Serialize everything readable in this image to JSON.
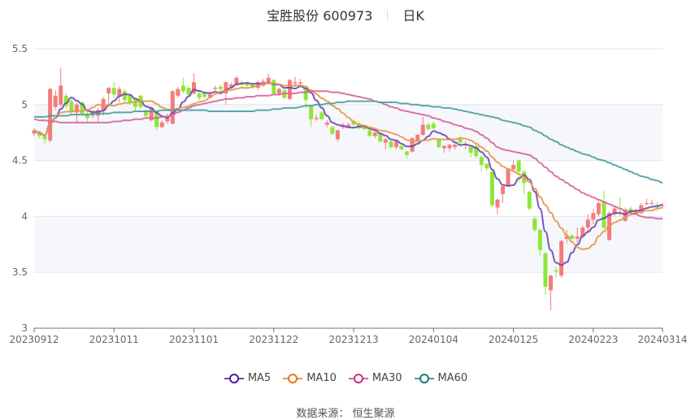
{
  "title": {
    "name": "宝胜股份 600973",
    "period": "日K"
  },
  "source": "数据来源： 恒生聚源",
  "colors": {
    "up": "#f47c7c",
    "down": "#8fe63a",
    "MA5": "#6b48b0",
    "MA10": "#e8964a",
    "MA30": "#d8609f",
    "MA60": "#4a9c9c",
    "legend_MA5": "#4a1e9e",
    "legend_MA10": "#e27820",
    "legend_MA30": "#cc2d86",
    "legend_MA60": "#137b7b"
  },
  "chart_data": {
    "type": "candlestick",
    "title": "宝胜股份 600973 日K",
    "ylim": [
      3,
      5.5
    ],
    "yticks": [
      "5.5",
      "5",
      "4.5",
      "4",
      "3.5",
      "3"
    ],
    "ytick_values": [
      5.5,
      5,
      4.5,
      4,
      3.5,
      3
    ],
    "xtick_labels": [
      "20230912",
      "20231011",
      "20231101",
      "20231122",
      "20231213",
      "20240104",
      "20240125",
      "20240223",
      "20240314"
    ],
    "xtick_indices": [
      0,
      15,
      30,
      45,
      60,
      75,
      90,
      105,
      118
    ],
    "grid": true,
    "legend": {
      "position": "bottom",
      "entries": [
        "MA5",
        "MA10",
        "MA30",
        "MA60"
      ]
    },
    "ohlc_fields": [
      "open",
      "close",
      "low",
      "high"
    ],
    "candles": [
      [
        4.74,
        4.77,
        4.72,
        4.79
      ],
      [
        4.76,
        4.72,
        4.7,
        4.77
      ],
      [
        4.72,
        4.69,
        4.65,
        4.73
      ],
      [
        4.68,
        5.14,
        4.66,
        5.15
      ],
      [
        4.98,
        5.08,
        4.95,
        5.13
      ],
      [
        5.0,
        5.17,
        4.98,
        5.33
      ],
      [
        5.08,
        4.99,
        4.97,
        5.1
      ],
      [
        5.03,
        4.94,
        4.9,
        5.05
      ],
      [
        4.93,
        5.0,
        4.84,
        5.02
      ],
      [
        5.02,
        4.92,
        4.91,
        5.03
      ],
      [
        4.92,
        4.88,
        4.85,
        4.94
      ],
      [
        4.9,
        4.93,
        4.88,
        4.95
      ],
      [
        4.9,
        4.95,
        4.85,
        4.97
      ],
      [
        4.95,
        5.05,
        4.9,
        5.07
      ],
      [
        5.1,
        5.15,
        5.0,
        5.16
      ],
      [
        5.15,
        5.09,
        5.05,
        5.2
      ],
      [
        5.08,
        5.14,
        5.02,
        5.16
      ],
      [
        5.12,
        5.04,
        5.02,
        5.14
      ],
      [
        5.08,
        5.02,
        5.0,
        5.1
      ],
      [
        5.05,
        4.98,
        4.94,
        5.06
      ],
      [
        5.08,
        4.98,
        4.96,
        5.09
      ],
      [
        4.95,
        4.9,
        4.88,
        4.96
      ],
      [
        4.86,
        4.97,
        4.85,
        4.98
      ],
      [
        4.94,
        4.8,
        4.77,
        4.95
      ],
      [
        4.8,
        4.84,
        4.79,
        4.86
      ],
      [
        4.85,
        4.9,
        4.83,
        4.92
      ],
      [
        4.83,
        5.12,
        4.82,
        5.13
      ],
      [
        5.08,
        5.14,
        5.06,
        5.16
      ],
      [
        5.17,
        5.12,
        5.1,
        5.24
      ],
      [
        5.15,
        5.09,
        5.07,
        5.16
      ],
      [
        5.1,
        5.2,
        5.09,
        5.28
      ],
      [
        5.1,
        5.06,
        5.04,
        5.12
      ],
      [
        5.1,
        5.07,
        5.05,
        5.11
      ],
      [
        5.07,
        5.09,
        5.06,
        5.12
      ],
      [
        5.14,
        5.15,
        5.12,
        5.17
      ],
      [
        5.16,
        5.14,
        5.13,
        5.18
      ],
      [
        5.1,
        5.2,
        5.0,
        5.21
      ],
      [
        5.16,
        5.18,
        5.14,
        5.2
      ],
      [
        5.18,
        5.24,
        5.17,
        5.26
      ],
      [
        5.2,
        5.18,
        5.16,
        5.22
      ],
      [
        5.19,
        5.17,
        5.15,
        5.21
      ],
      [
        5.18,
        5.16,
        5.14,
        5.2
      ],
      [
        5.15,
        5.2,
        5.13,
        5.22
      ],
      [
        5.17,
        5.21,
        5.16,
        5.23
      ],
      [
        5.2,
        5.24,
        5.18,
        5.28
      ],
      [
        5.22,
        5.1,
        5.08,
        5.23
      ],
      [
        5.1,
        5.14,
        5.08,
        5.15
      ],
      [
        5.13,
        5.06,
        5.05,
        5.14
      ],
      [
        5.05,
        5.22,
        5.04,
        5.23
      ],
      [
        5.19,
        5.2,
        5.16,
        5.25
      ],
      [
        5.19,
        5.2,
        5.17,
        5.23
      ],
      [
        5.15,
        5.04,
        4.97,
        5.16
      ],
      [
        4.99,
        4.87,
        4.8,
        5.0
      ],
      [
        4.87,
        4.88,
        4.85,
        4.91
      ],
      [
        4.93,
        4.87,
        4.86,
        4.94
      ],
      [
        4.82,
        4.84,
        4.8,
        4.86
      ],
      [
        4.8,
        4.74,
        4.73,
        4.81
      ],
      [
        4.69,
        4.77,
        4.67,
        4.78
      ],
      [
        4.8,
        4.82,
        4.78,
        4.84
      ],
      [
        4.8,
        4.82,
        4.79,
        4.84
      ],
      [
        4.85,
        4.82,
        4.81,
        4.87
      ],
      [
        4.83,
        4.79,
        4.78,
        4.85
      ],
      [
        4.8,
        4.78,
        4.77,
        4.82
      ],
      [
        4.77,
        4.72,
        4.71,
        4.78
      ],
      [
        4.72,
        4.75,
        4.7,
        4.77
      ],
      [
        4.74,
        4.67,
        4.66,
        4.75
      ],
      [
        4.66,
        4.69,
        4.6,
        4.7
      ],
      [
        4.67,
        4.62,
        4.61,
        4.68
      ],
      [
        4.62,
        4.67,
        4.6,
        4.68
      ],
      [
        4.63,
        4.6,
        4.59,
        4.64
      ],
      [
        4.58,
        4.55,
        4.52,
        4.59
      ],
      [
        4.58,
        4.7,
        4.57,
        4.71
      ],
      [
        4.68,
        4.73,
        4.67,
        4.74
      ],
      [
        4.73,
        4.82,
        4.72,
        4.89
      ],
      [
        4.82,
        4.78,
        4.77,
        4.84
      ],
      [
        4.83,
        4.79,
        4.78,
        4.85
      ],
      [
        4.69,
        4.62,
        4.61,
        4.7
      ],
      [
        4.61,
        4.63,
        4.57,
        4.64
      ],
      [
        4.61,
        4.64,
        4.58,
        4.65
      ],
      [
        4.62,
        4.64,
        4.6,
        4.66
      ],
      [
        4.7,
        4.66,
        4.64,
        4.72
      ],
      [
        4.64,
        4.65,
        4.6,
        4.67
      ],
      [
        4.62,
        4.57,
        4.53,
        4.63
      ],
      [
        4.63,
        4.54,
        4.52,
        4.65
      ],
      [
        4.53,
        4.46,
        4.4,
        4.55
      ],
      [
        4.47,
        4.43,
        4.41,
        4.48
      ],
      [
        4.4,
        4.1,
        4.08,
        4.42
      ],
      [
        4.08,
        4.15,
        4.02,
        4.16
      ],
      [
        4.2,
        4.27,
        4.12,
        4.28
      ],
      [
        4.27,
        4.42,
        4.26,
        4.43
      ],
      [
        4.42,
        4.46,
        4.4,
        4.5
      ],
      [
        4.5,
        4.4,
        4.3,
        4.51
      ],
      [
        4.4,
        4.3,
        4.2,
        4.42
      ],
      [
        4.22,
        4.07,
        4.05,
        4.23
      ],
      [
        3.98,
        3.88,
        3.86,
        4.0
      ],
      [
        3.88,
        3.7,
        3.65,
        3.89
      ],
      [
        3.67,
        3.37,
        3.3,
        3.68
      ],
      [
        3.34,
        3.47,
        3.16,
        3.48
      ],
      [
        3.52,
        3.51,
        3.45,
        3.55
      ],
      [
        3.47,
        3.78,
        3.45,
        3.79
      ],
      [
        3.8,
        3.82,
        3.76,
        3.88
      ],
      [
        3.83,
        3.8,
        3.78,
        3.84
      ],
      [
        3.8,
        3.82,
        3.76,
        3.9
      ],
      [
        3.82,
        3.9,
        3.8,
        3.92
      ],
      [
        3.9,
        3.97,
        3.85,
        4.02
      ],
      [
        3.97,
        4.03,
        3.93,
        4.07
      ],
      [
        4.02,
        4.12,
        4.0,
        4.14
      ],
      [
        4.13,
        3.9,
        3.88,
        4.23
      ],
      [
        3.79,
        4.03,
        3.78,
        4.05
      ],
      [
        4.02,
        4.07,
        4.0,
        4.09
      ],
      [
        4.04,
        4.03,
        4.0,
        4.17
      ],
      [
        3.96,
        4.06,
        3.95,
        4.08
      ],
      [
        4.07,
        4.04,
        4.02,
        4.09
      ],
      [
        4.03,
        4.05,
        4.01,
        4.07
      ],
      [
        4.03,
        4.1,
        4.02,
        4.12
      ],
      [
        4.11,
        4.12,
        4.1,
        4.16
      ],
      [
        4.12,
        4.12,
        4.1,
        4.15
      ],
      [
        4.1,
        4.08,
        4.05,
        4.13
      ],
      [
        4.1,
        4.1,
        4.07,
        4.12
      ]
    ],
    "series": [
      {
        "name": "MA5",
        "window": 5
      },
      {
        "name": "MA10",
        "window": 10
      },
      {
        "name": "MA30",
        "values": [
          4.87,
          4.86,
          4.86,
          4.85,
          4.85,
          4.84,
          4.84,
          4.84,
          4.84,
          4.84,
          4.84,
          4.84,
          4.84,
          4.84,
          4.84,
          4.85,
          4.85,
          4.86,
          4.86,
          4.87,
          4.87,
          4.88,
          4.88,
          4.88,
          4.89,
          4.89,
          4.91,
          4.93,
          4.95,
          4.97,
          4.99,
          5.0,
          5.01,
          5.02,
          5.03,
          5.04,
          5.05,
          5.05,
          5.06,
          5.06,
          5.07,
          5.07,
          5.08,
          5.08,
          5.08,
          5.09,
          5.09,
          5.1,
          5.1,
          5.1,
          5.11,
          5.11,
          5.12,
          5.12,
          5.12,
          5.12,
          5.11,
          5.11,
          5.1,
          5.09,
          5.08,
          5.07,
          5.06,
          5.05,
          5.03,
          5.02,
          5.0,
          4.98,
          4.97,
          4.95,
          4.94,
          4.93,
          4.92,
          4.91,
          4.9,
          4.88,
          4.87,
          4.85,
          4.84,
          4.82,
          4.81,
          4.79,
          4.78,
          4.76,
          4.73,
          4.7,
          4.66,
          4.62,
          4.6,
          4.59,
          4.58,
          4.57,
          4.56,
          4.55,
          4.52,
          4.48,
          4.44,
          4.4,
          4.36,
          4.33,
          4.3,
          4.27,
          4.24,
          4.21,
          4.19,
          4.17,
          4.15,
          4.13,
          4.11,
          4.09,
          4.07,
          4.05,
          4.03,
          4.02,
          4.0,
          3.99,
          3.99,
          3.98,
          3.98
        ]
      },
      {
        "name": "MA60",
        "values": [
          4.89,
          4.89,
          4.89,
          4.9,
          4.9,
          4.9,
          4.9,
          4.91,
          4.91,
          4.91,
          4.91,
          4.92,
          4.92,
          4.92,
          4.92,
          4.93,
          4.93,
          4.93,
          4.93,
          4.94,
          4.94,
          4.94,
          4.94,
          4.94,
          4.95,
          4.95,
          4.95,
          4.95,
          4.95,
          4.95,
          4.95,
          4.95,
          4.95,
          4.94,
          4.94,
          4.94,
          4.94,
          4.94,
          4.94,
          4.94,
          4.94,
          4.94,
          4.95,
          4.95,
          4.95,
          4.96,
          4.96,
          4.97,
          4.97,
          4.97,
          4.98,
          4.99,
          4.99,
          5.0,
          5.0,
          5.01,
          5.01,
          5.02,
          5.02,
          5.03,
          5.03,
          5.03,
          5.03,
          5.03,
          5.03,
          5.02,
          5.02,
          5.02,
          5.02,
          5.01,
          5.01,
          5.0,
          5.0,
          4.99,
          4.99,
          4.98,
          4.98,
          4.97,
          4.97,
          4.96,
          4.95,
          4.94,
          4.93,
          4.92,
          4.91,
          4.9,
          4.89,
          4.88,
          4.86,
          4.85,
          4.84,
          4.83,
          4.81,
          4.8,
          4.77,
          4.75,
          4.72,
          4.69,
          4.67,
          4.64,
          4.62,
          4.6,
          4.58,
          4.56,
          4.55,
          4.53,
          4.51,
          4.5,
          4.48,
          4.46,
          4.44,
          4.42,
          4.4,
          4.38,
          4.36,
          4.35,
          4.33,
          4.32,
          4.3
        ]
      }
    ]
  },
  "legend": [
    {
      "label": "MA5"
    },
    {
      "label": "MA10"
    },
    {
      "label": "MA30"
    },
    {
      "label": "MA60"
    }
  ]
}
